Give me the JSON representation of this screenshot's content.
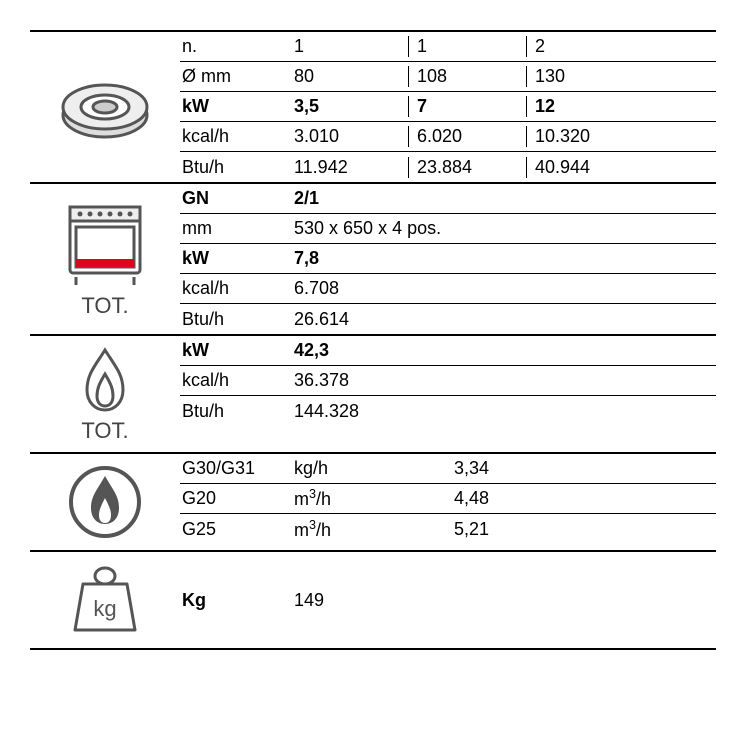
{
  "section_burner": {
    "rows": [
      {
        "label": "n.",
        "vals": [
          "1",
          "1",
          "2"
        ],
        "bold": false
      },
      {
        "label": "Ø mm",
        "vals": [
          "80",
          "108",
          "130"
        ],
        "bold": false
      },
      {
        "label": "kW",
        "vals": [
          "3,5",
          "7",
          "12"
        ],
        "bold": true
      },
      {
        "label": "kcal/h",
        "vals": [
          "3.010",
          "6.020",
          "10.320"
        ],
        "bold": false
      },
      {
        "label": "Btu/h",
        "vals": [
          "11.942",
          "23.884",
          "40.944"
        ],
        "bold": false
      }
    ]
  },
  "section_oven": {
    "tot": "TOT.",
    "rows": [
      {
        "label": "GN",
        "val": "2/1",
        "bold": true
      },
      {
        "label": "mm",
        "val": "530 x 650 x 4 pos.",
        "bold": false
      },
      {
        "label": "kW",
        "val": "7,8",
        "bold": true
      },
      {
        "label": "kcal/h",
        "val": "6.708",
        "bold": false
      },
      {
        "label": "Btu/h",
        "val": "26.614",
        "bold": false
      }
    ]
  },
  "section_flame_tot": {
    "tot": "TOT.",
    "rows": [
      {
        "label": "kW",
        "val": "42,3",
        "bold": true
      },
      {
        "label": "kcal/h",
        "val": "36.378",
        "bold": false
      },
      {
        "label": "Btu/h",
        "val": "144.328",
        "bold": false
      }
    ]
  },
  "section_gas": {
    "rows": [
      {
        "label": "G30/G31",
        "unit": "kg/h",
        "unit_html": false,
        "val": "3,34"
      },
      {
        "label": "G20",
        "unit": "m3/h",
        "unit_html": true,
        "val": "4,48"
      },
      {
        "label": "G25",
        "unit": "m3/h",
        "unit_html": true,
        "val": "5,21"
      }
    ]
  },
  "section_weight": {
    "label": "Kg",
    "val": "149"
  },
  "colors": {
    "stroke": "#555555",
    "fill_light": "#dddddd",
    "fill_dark": "#555555",
    "red": "#e2001a"
  }
}
